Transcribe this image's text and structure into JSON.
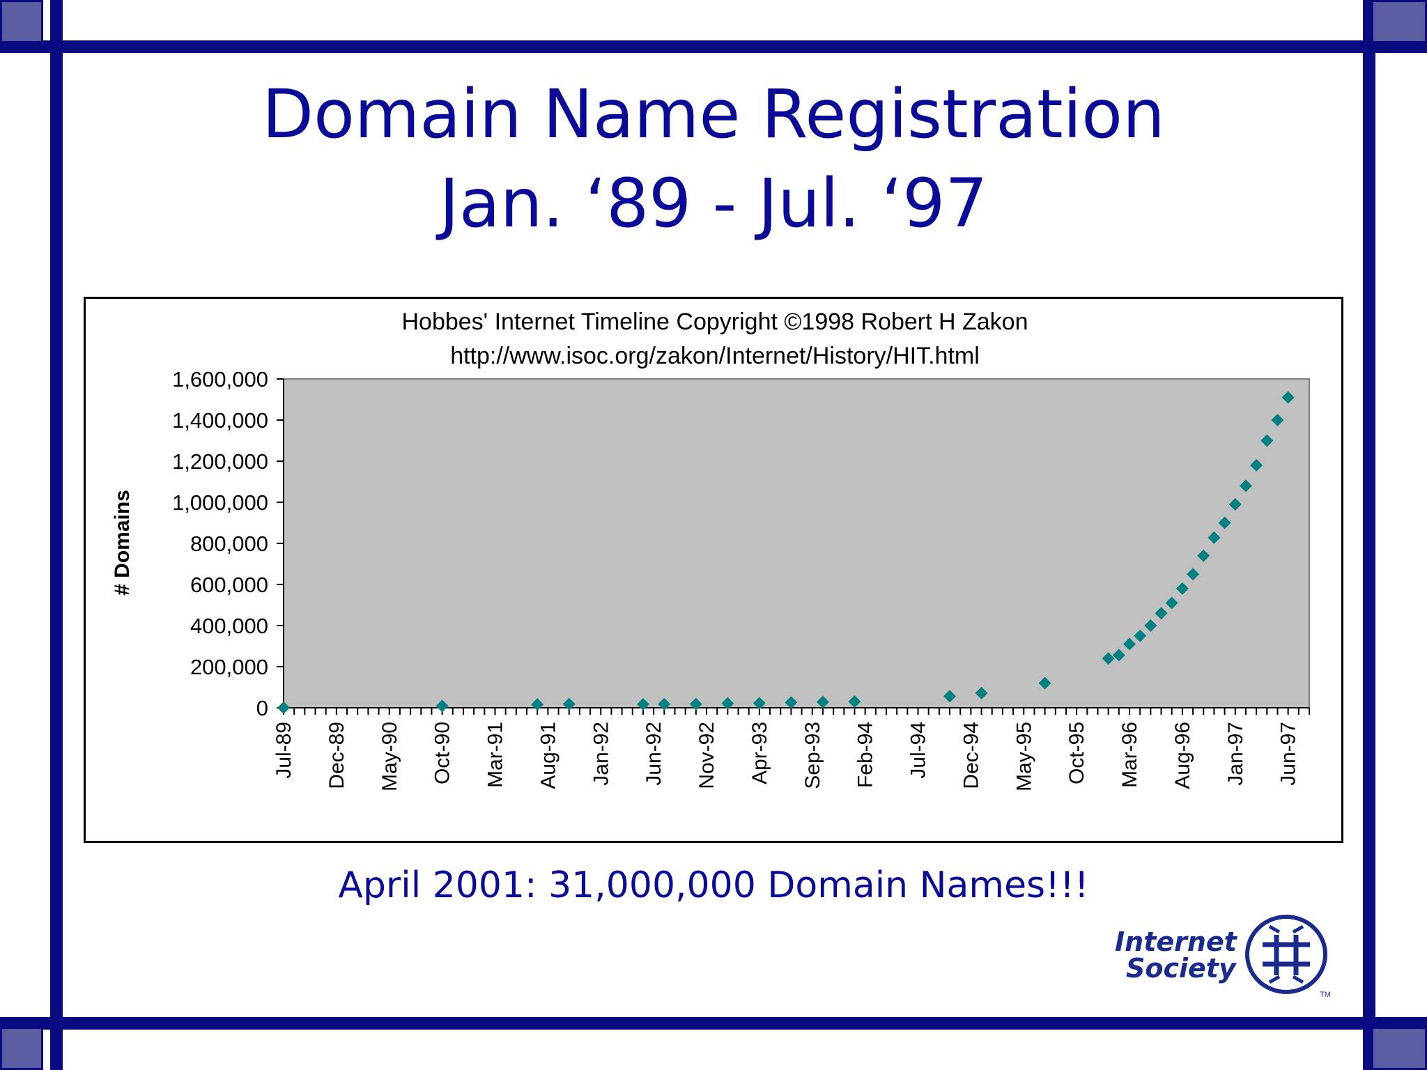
{
  "slide": {
    "title_line1": "Domain Name Registration",
    "title_line2": "Jan. ‘89 - Jul. ‘97",
    "caption": "April 2001: 31,000,000 Domain Names!!!"
  },
  "logo": {
    "line1": "Internet",
    "line2": "Society",
    "trademark": "TM",
    "icon": "isoc-globe-icon"
  },
  "colors": {
    "frame": "#0a0a80",
    "title": "#0a0a99",
    "plot_area": "#c0c0c0",
    "marker": "#008080"
  },
  "chart_data": {
    "type": "scatter",
    "title": "Hobbes' Internet Timeline Copyright ©1998 Robert H Zakon",
    "subtitle": "http://www.isoc.org/zakon/Internet/History/HIT.html",
    "xlabel": "",
    "ylabel": "# Domains",
    "ylim": [
      0,
      1600000
    ],
    "yticks": [
      "0",
      "200,000",
      "400,000",
      "600,000",
      "800,000",
      "1,000,000",
      "1,200,000",
      "1,400,000",
      "1,600,000"
    ],
    "xlim": [
      "1989-07",
      "1997-08"
    ],
    "xticks": [
      "Jul-89",
      "Dec-89",
      "May-90",
      "Oct-90",
      "Mar-91",
      "Aug-91",
      "Jan-92",
      "Jun-92",
      "Nov-92",
      "Apr-93",
      "Sep-93",
      "Feb-94",
      "Jul-94",
      "Dec-94",
      "May-95",
      "Oct-95",
      "Mar-96",
      "Aug-96",
      "Jan-97",
      "Jun-97"
    ],
    "grid": false,
    "legend": "none",
    "points": [
      {
        "x": "1989-07",
        "y": 0
      },
      {
        "x": "1990-10",
        "y": 9000
      },
      {
        "x": "1991-07",
        "y": 16000
      },
      {
        "x": "1991-10",
        "y": 18000
      },
      {
        "x": "1992-05",
        "y": 17000
      },
      {
        "x": "1992-07",
        "y": 18000
      },
      {
        "x": "1992-10",
        "y": 18000
      },
      {
        "x": "1993-01",
        "y": 21000
      },
      {
        "x": "1993-04",
        "y": 22000
      },
      {
        "x": "1993-07",
        "y": 26000
      },
      {
        "x": "1993-10",
        "y": 28000
      },
      {
        "x": "1994-01",
        "y": 30000
      },
      {
        "x": "1994-10",
        "y": 56000
      },
      {
        "x": "1995-01",
        "y": 71000
      },
      {
        "x": "1995-07",
        "y": 120000
      },
      {
        "x": "1996-01",
        "y": 240000
      },
      {
        "x": "1996-02",
        "y": 256000
      },
      {
        "x": "1996-03",
        "y": 310000
      },
      {
        "x": "1996-04",
        "y": 350000
      },
      {
        "x": "1996-05",
        "y": 400000
      },
      {
        "x": "1996-06",
        "y": 460000
      },
      {
        "x": "1996-07",
        "y": 510000
      },
      {
        "x": "1996-08",
        "y": 580000
      },
      {
        "x": "1996-09",
        "y": 650000
      },
      {
        "x": "1996-10",
        "y": 740000
      },
      {
        "x": "1996-11",
        "y": 828000
      },
      {
        "x": "1996-12",
        "y": 900000
      },
      {
        "x": "1997-01",
        "y": 990000
      },
      {
        "x": "1997-02",
        "y": 1080000
      },
      {
        "x": "1997-03",
        "y": 1180000
      },
      {
        "x": "1997-04",
        "y": 1300000
      },
      {
        "x": "1997-05",
        "y": 1400000
      },
      {
        "x": "1997-06",
        "y": 1510000
      }
    ]
  }
}
